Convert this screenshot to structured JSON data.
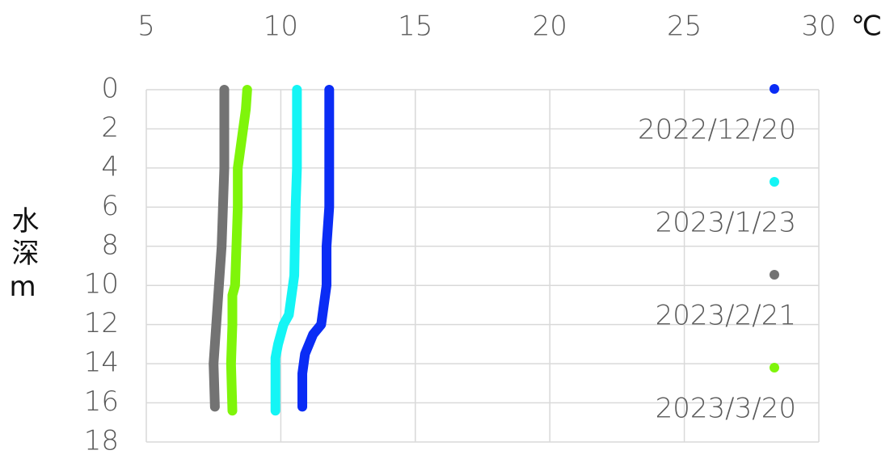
{
  "chart_data": {
    "type": "scatter",
    "x_label": "℃",
    "y_label": "水深m",
    "xlim": [
      5,
      30
    ],
    "xticks": [
      5,
      10,
      15,
      20,
      25,
      30
    ],
    "ylim": [
      0,
      18
    ],
    "yticks": [
      0,
      2,
      4,
      6,
      8,
      10,
      12,
      14,
      16,
      18
    ],
    "y_inverted": true,
    "x_axis_position": "top",
    "grid": true,
    "legend": "right",
    "series": [
      {
        "name": "2022/12/20",
        "color": "#0a2cf5",
        "x": [
          11.8,
          11.8,
          11.8,
          11.8,
          11.7,
          11.7,
          11.6,
          11.5,
          11.2,
          10.9,
          10.8,
          10.8,
          10.8
        ],
        "y": [
          0,
          2,
          4,
          6,
          8,
          10,
          11,
          12,
          12.5,
          13.5,
          14.5,
          15,
          16.2
        ]
      },
      {
        "name": "2023/1/23",
        "color": "#14f5f5",
        "x": [
          10.6,
          10.6,
          10.6,
          10.55,
          10.5,
          10.3,
          10.1,
          9.9,
          9.8,
          9.8
        ],
        "y": [
          0,
          2,
          4,
          6,
          9.5,
          11.5,
          12,
          13,
          13.7,
          16.4
        ]
      },
      {
        "name": "2023/2/21",
        "color": "#737373",
        "x": [
          7.9,
          7.9,
          7.85,
          7.8,
          7.7,
          7.65,
          7.6,
          7.5,
          7.55
        ],
        "y": [
          0,
          4,
          6,
          8,
          10,
          11,
          12,
          14,
          16.2
        ]
      },
      {
        "name": "2023/3/20",
        "color": "#7ff50a",
        "x": [
          8.75,
          8.7,
          8.6,
          8.5,
          8.4,
          8.4,
          8.35,
          8.3,
          8.2,
          8.2,
          8.15,
          8.2
        ],
        "y": [
          0,
          1,
          2,
          3,
          4,
          6,
          8,
          10,
          10.5,
          12,
          14,
          16.4
        ]
      }
    ]
  }
}
